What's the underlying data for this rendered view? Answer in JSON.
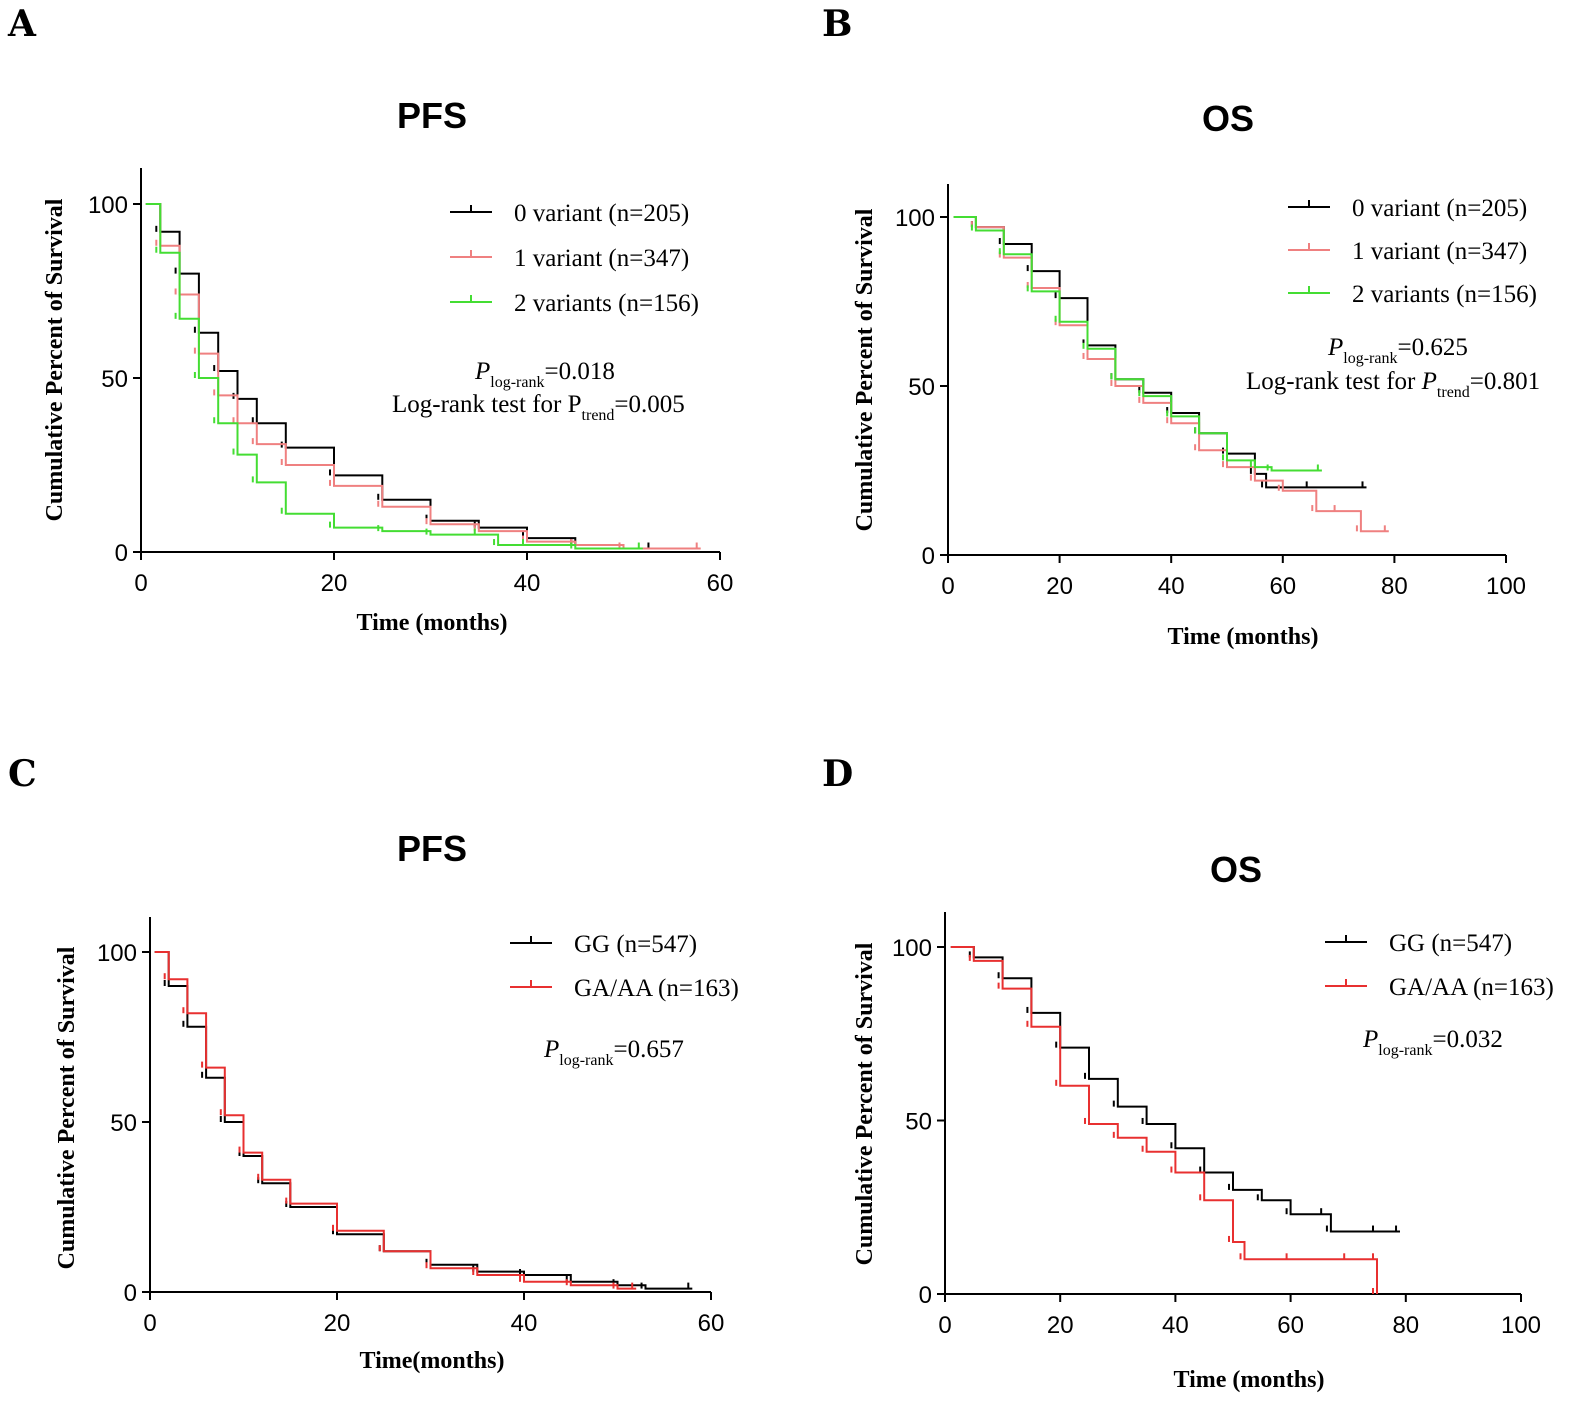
{
  "chart_data": [
    {
      "panel": "A",
      "type": "line",
      "title": "PFS",
      "xlabel": "Time (months)",
      "ylabel": "Cumulative Percent of Survival",
      "xlim": [
        0,
        60
      ],
      "ylim": [
        0,
        100
      ],
      "xticks": [
        "0",
        "20",
        "40",
        "60"
      ],
      "yticks": [
        "0",
        "50",
        "100"
      ],
      "series": [
        {
          "name": "0 variant (n=205)",
          "color": "#000000",
          "x": [
            0.5,
            2,
            4,
            6,
            8,
            10,
            12,
            15,
            20,
            25,
            30,
            35,
            40,
            45,
            50,
            53
          ],
          "y": [
            100,
            92,
            80,
            63,
            52,
            44,
            37,
            30,
            22,
            15,
            9,
            7,
            4,
            2,
            1,
            1
          ]
        },
        {
          "name": "1 variant (n=347)",
          "color": "#ef8080",
          "x": [
            0.5,
            2,
            4,
            6,
            8,
            10,
            12,
            15,
            20,
            25,
            30,
            35,
            40,
            45,
            50,
            58
          ],
          "y": [
            100,
            88,
            74,
            57,
            45,
            37,
            31,
            25,
            19,
            13,
            8,
            6,
            3,
            2,
            1,
            1
          ]
        },
        {
          "name": "2 variants (n=156)",
          "color": "#44dd33",
          "x": [
            0.5,
            2,
            4,
            6,
            8,
            10,
            12,
            15,
            20,
            25,
            30,
            35,
            37,
            40,
            45,
            52
          ],
          "y": [
            100,
            86,
            67,
            50,
            37,
            28,
            20,
            11,
            7,
            6,
            5,
            5,
            2,
            2,
            1,
            1
          ]
        }
      ],
      "legend": [
        "0 variant (n=205)",
        "1 variant (n=347)",
        "2 variants (n=156)"
      ],
      "annotations": {
        "p_label": "P",
        "p_sub": "log-rank",
        "p_value": "=0.018",
        "trend_prefix": "Log-rank test for P",
        "trend_sub": "trend",
        "trend_value": "=0.005"
      }
    },
    {
      "panel": "B",
      "type": "line",
      "title": "OS",
      "xlabel": "Time (months)",
      "ylabel": "Cumulative Percent of Survival",
      "xlim": [
        0,
        100
      ],
      "ylim": [
        0,
        100
      ],
      "xticks": [
        "0",
        "20",
        "40",
        "60",
        "80",
        "100"
      ],
      "yticks": [
        "0",
        "50",
        "100"
      ],
      "series": [
        {
          "name": "0 variant (n=205)",
          "color": "#000000",
          "x": [
            1,
            5,
            10,
            15,
            20,
            25,
            30,
            35,
            40,
            45,
            50,
            55,
            57,
            65,
            75
          ],
          "y": [
            100,
            97,
            92,
            84,
            76,
            62,
            52,
            48,
            42,
            36,
            30,
            24,
            20,
            20,
            20
          ]
        },
        {
          "name": "1 variant (n=347)",
          "color": "#ef8080",
          "x": [
            1,
            5,
            10,
            15,
            20,
            25,
            30,
            35,
            40,
            45,
            50,
            55,
            60,
            66,
            70,
            74,
            79
          ],
          "y": [
            100,
            97,
            88,
            79,
            68,
            58,
            50,
            45,
            39,
            31,
            26,
            22,
            19,
            13,
            13,
            7,
            7
          ]
        },
        {
          "name": "2 variants (n=156)",
          "color": "#44dd33",
          "x": [
            1,
            5,
            10,
            15,
            20,
            25,
            30,
            35,
            40,
            45,
            50,
            55,
            58,
            67
          ],
          "y": [
            100,
            96,
            89,
            78,
            69,
            61,
            52,
            47,
            41,
            36,
            28,
            26,
            25,
            25
          ]
        }
      ],
      "legend": [
        "0 variant (n=205)",
        "1 variant (n=347)",
        "2 variants (n=156)"
      ],
      "annotations": {
        "p_label": "P",
        "p_sub": "log-rank",
        "p_value": "=0.625",
        "trend_prefix": "Log-rank test for ",
        "trend_label": "P",
        "trend_sub": "trend",
        "trend_value": "=0.801"
      }
    },
    {
      "panel": "C",
      "type": "line",
      "title": "PFS",
      "xlabel": "Time(months)",
      "ylabel": "Cumulative Percent of Survival",
      "xlim": [
        0,
        60
      ],
      "ylim": [
        0,
        100
      ],
      "xticks": [
        "0",
        "20",
        "40",
        "60"
      ],
      "yticks": [
        "0",
        "50",
        "100"
      ],
      "series": [
        {
          "name": "GG (n=547)",
          "color": "#000000",
          "x": [
            0.5,
            2,
            4,
            6,
            8,
            10,
            12,
            15,
            20,
            25,
            30,
            35,
            40,
            45,
            50,
            53,
            58
          ],
          "y": [
            100,
            90,
            78,
            63,
            50,
            40,
            32,
            25,
            17,
            12,
            8,
            6,
            5,
            3,
            2,
            1,
            1
          ]
        },
        {
          "name": "GA/AA (n=163)",
          "color": "#e83030",
          "x": [
            0.5,
            2,
            4,
            6,
            8,
            10,
            12,
            15,
            20,
            25,
            30,
            35,
            40,
            45,
            50,
            52
          ],
          "y": [
            100,
            92,
            82,
            66,
            52,
            41,
            33,
            26,
            18,
            12,
            7,
            5,
            3,
            2,
            1,
            1
          ]
        }
      ],
      "legend": [
        "GG (n=547)",
        "GA/AA (n=163)"
      ],
      "annotations": {
        "p_label": "P",
        "p_sub": "log-rank",
        "p_value": "=0.657"
      }
    },
    {
      "panel": "D",
      "type": "line",
      "title": "OS",
      "xlabel": "Time (months)",
      "ylabel": "Cumulative Percent of Survival",
      "xlim": [
        0,
        100
      ],
      "ylim": [
        0,
        100
      ],
      "xticks": [
        "0",
        "20",
        "40",
        "60",
        "80",
        "100"
      ],
      "yticks": [
        "0",
        "50",
        "100"
      ],
      "series": [
        {
          "name": "GG (n=547)",
          "color": "#000000",
          "x": [
            1,
            5,
            10,
            15,
            20,
            25,
            30,
            35,
            40,
            45,
            50,
            55,
            60,
            66,
            67,
            75,
            79
          ],
          "y": [
            100,
            97,
            91,
            81,
            71,
            62,
            54,
            49,
            42,
            35,
            30,
            27,
            23,
            23,
            18,
            18,
            18
          ]
        },
        {
          "name": "GA/AA (n=163)",
          "color": "#e83030",
          "x": [
            1,
            5,
            10,
            15,
            20,
            25,
            30,
            35,
            40,
            45,
            50,
            52,
            60,
            70,
            75,
            75
          ],
          "y": [
            100,
            96,
            88,
            77,
            60,
            49,
            45,
            41,
            35,
            27,
            15,
            10,
            10,
            10,
            10,
            0
          ]
        }
      ],
      "legend": [
        "GG (n=547)",
        "GA/AA (n=163)"
      ],
      "annotations": {
        "p_label": "P",
        "p_sub": "log-rank",
        "p_value": "=0.032"
      }
    }
  ]
}
